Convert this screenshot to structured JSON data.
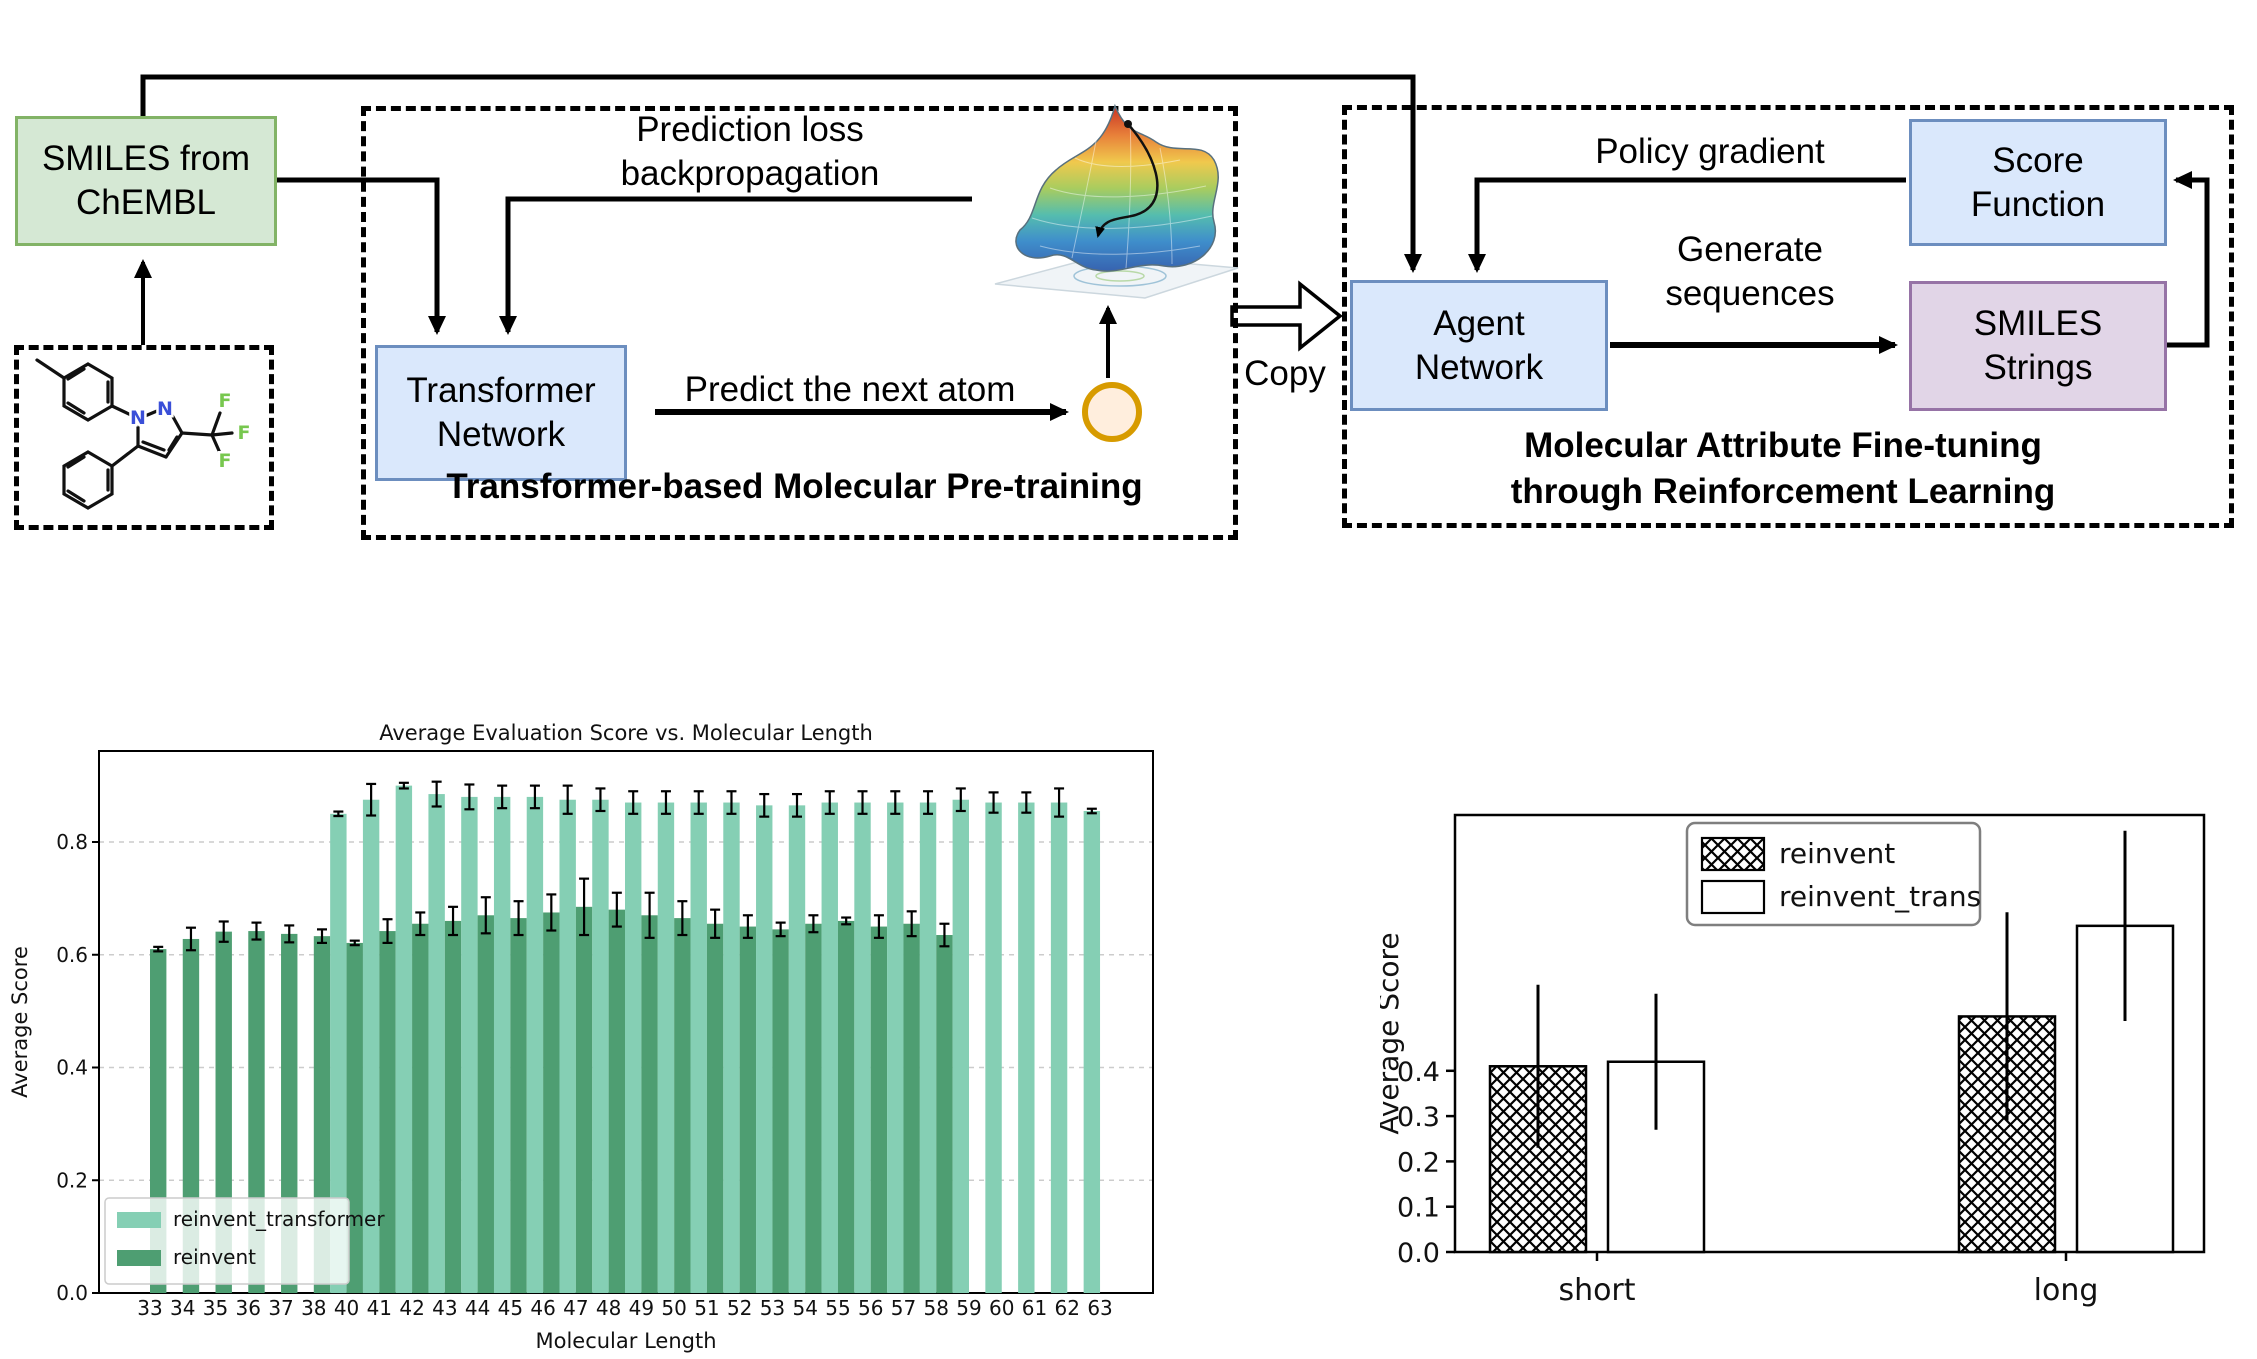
{
  "diagram": {
    "smiles_box": {
      "line1": "SMILES from",
      "line2": "ChEMBL"
    },
    "pretrain": {
      "loss_line1": "Prediction loss",
      "loss_line2": "backpropagation",
      "transformer_line1": "Transformer",
      "transformer_line2": "Network",
      "predict_label": "Predict the next atom",
      "caption": "Transformer-based Molecular Pre-training"
    },
    "copy_label": "Copy",
    "rl": {
      "policy_label": "Policy gradient",
      "score_line1": "Score",
      "score_line2": "Function",
      "agent_line1": "Agent",
      "agent_line2": "Network",
      "generate_line1": "Generate",
      "generate_line2": "sequences",
      "smiles_line1": "SMILES",
      "smiles_line2": "Strings",
      "caption_line1": "Molecular Attribute Fine-tuning",
      "caption_line2": "through Reinforcement Learning"
    },
    "molecule_atoms": [
      "N",
      "N",
      "F",
      "F",
      "F"
    ],
    "colors": {
      "green_box_fill": "#d5e8d4",
      "green_box_border": "#82b366",
      "blue_box_fill": "#dae8fc",
      "blue_box_border": "#6c8ebf",
      "purple_box_fill": "#e1d5e7",
      "purple_box_border": "#9673a6",
      "atom_circle_fill": "#ffeedd",
      "atom_circle_border": "#d79b00",
      "nitrogen_blue": "#3a4fd8",
      "fluorine_green": "#77c74f"
    }
  },
  "chart_data": [
    {
      "type": "bar",
      "title": "Average Evaluation Score vs. Molecular Length",
      "xlabel": "Molecular Length",
      "ylabel": "Average Score",
      "grid": true,
      "legend_position": "lower left",
      "ylim": [
        0,
        0.96
      ],
      "ytick_labels": [
        "0.0",
        "0.2",
        "0.4",
        "0.6",
        "0.8"
      ],
      "yticks": [
        0.0,
        0.2,
        0.4,
        0.6,
        0.8
      ],
      "categories": [
        "33",
        "34",
        "35",
        "36",
        "37",
        "38",
        "40",
        "41",
        "42",
        "43",
        "44",
        "45",
        "46",
        "47",
        "48",
        "49",
        "50",
        "51",
        "52",
        "53",
        "54",
        "55",
        "56",
        "57",
        "58",
        "59",
        "60",
        "61",
        "62",
        "63"
      ],
      "series": [
        {
          "name": "reinvent_transformer",
          "color": "#85cfb4",
          "values": [
            null,
            null,
            null,
            null,
            null,
            null,
            0.85,
            0.875,
            0.9,
            0.885,
            0.88,
            0.88,
            0.88,
            0.875,
            0.875,
            0.87,
            0.87,
            0.87,
            0.87,
            0.865,
            0.865,
            0.87,
            0.87,
            0.87,
            0.87,
            0.875,
            0.87,
            0.87,
            0.87,
            0.855
          ],
          "errors": [
            null,
            null,
            null,
            null,
            null,
            null,
            0.004,
            0.028,
            0.005,
            0.022,
            0.022,
            0.02,
            0.02,
            0.025,
            0.02,
            0.02,
            0.02,
            0.02,
            0.02,
            0.02,
            0.02,
            0.02,
            0.02,
            0.02,
            0.02,
            0.02,
            0.018,
            0.018,
            0.025,
            0.004
          ]
        },
        {
          "name": "reinvent",
          "color": "#4e9e72",
          "values": [
            0.61,
            0.628,
            0.641,
            0.642,
            0.637,
            0.633,
            0.621,
            0.642,
            0.655,
            0.66,
            0.67,
            0.665,
            0.675,
            0.685,
            0.68,
            0.67,
            0.665,
            0.655,
            0.65,
            0.645,
            0.655,
            0.66,
            0.65,
            0.655,
            0.635,
            null,
            null,
            null,
            null,
            null
          ],
          "errors": [
            0.004,
            0.02,
            0.018,
            0.015,
            0.015,
            0.012,
            0.004,
            0.021,
            0.02,
            0.025,
            0.032,
            0.03,
            0.032,
            0.05,
            0.03,
            0.04,
            0.03,
            0.025,
            0.02,
            0.012,
            0.015,
            0.006,
            0.02,
            0.022,
            0.02,
            null,
            null,
            null,
            null,
            null
          ]
        }
      ]
    },
    {
      "type": "bar",
      "title": "",
      "xlabel": "",
      "ylabel": "Average Score",
      "grid": false,
      "legend_position": "upper center",
      "ylim": [
        0,
        0.96
      ],
      "ytick_labels": [
        "0.0",
        "0.1",
        "0.2",
        "0.3",
        "0.4"
      ],
      "yticks": [
        0.0,
        0.1,
        0.2,
        0.3,
        0.4
      ],
      "categories": [
        "short",
        "long"
      ],
      "series": [
        {
          "name": "reinvent",
          "pattern": "crosshatch",
          "values": [
            0.41,
            0.52
          ],
          "errors": [
            0.18,
            0.23
          ]
        },
        {
          "name": "reinvent_trans",
          "pattern": "none",
          "values": [
            0.42,
            0.72
          ],
          "errors": [
            0.15,
            0.21
          ]
        }
      ]
    }
  ]
}
